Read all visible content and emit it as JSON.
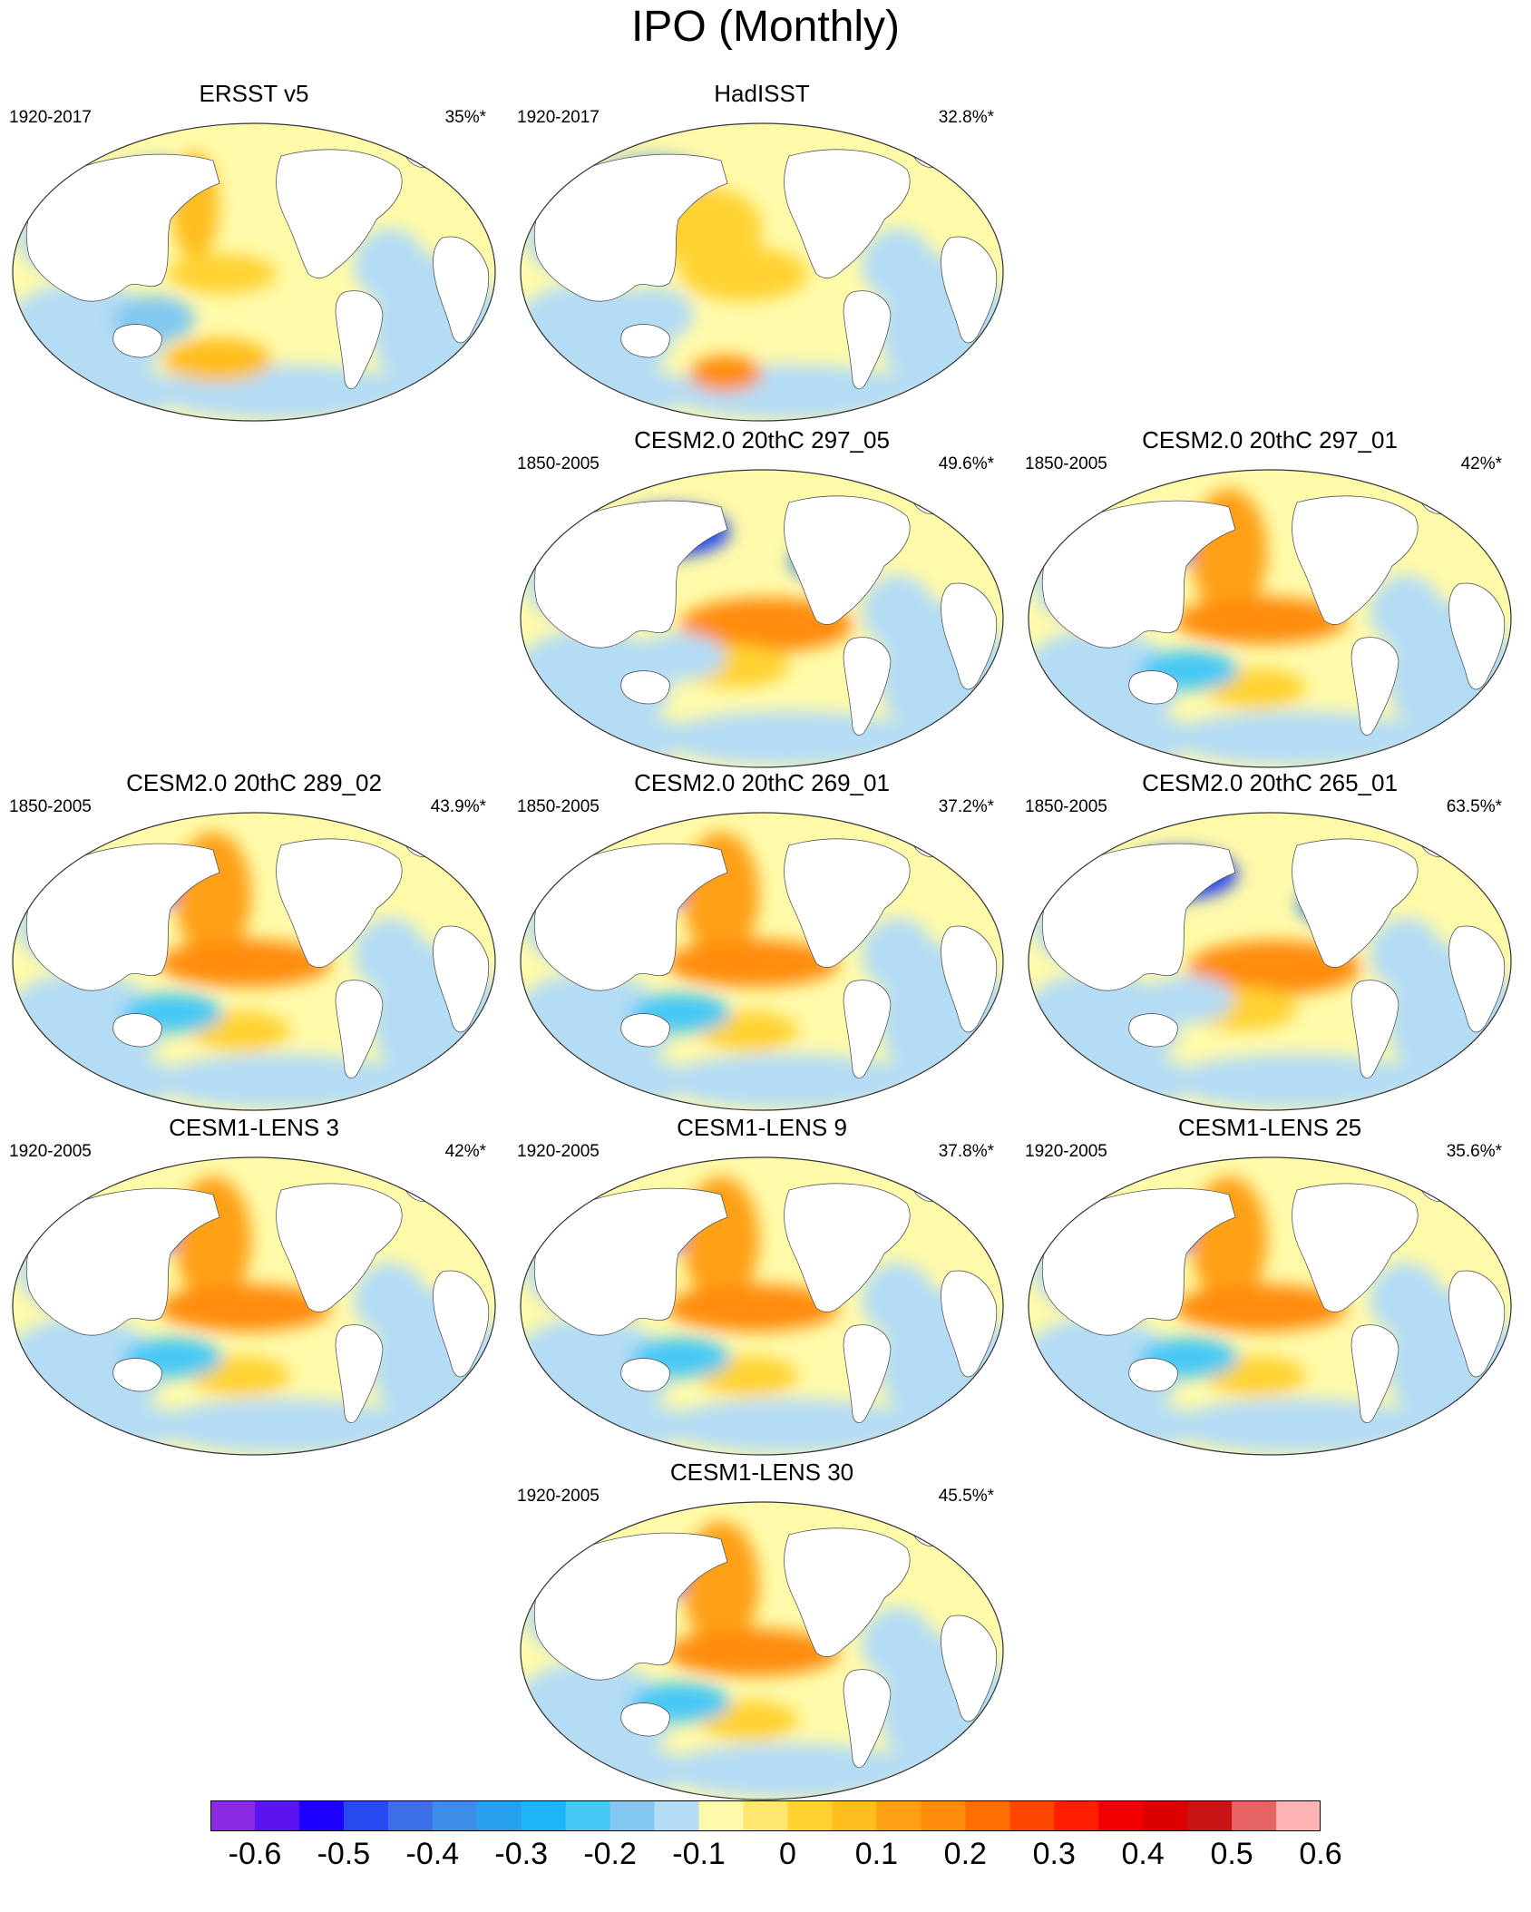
{
  "title": "IPO (Monthly)",
  "panels": [
    {
      "name": "ERSST v5",
      "period": "1920-2017",
      "pct": "35%*",
      "row": 0,
      "col": 0,
      "pattern": "obs1"
    },
    {
      "name": "HadISST",
      "period": "1920-2017",
      "pct": "32.8%*",
      "row": 0,
      "col": 1,
      "pattern": "obs2"
    },
    {
      "name": "CESM2.0 20thC 297_05",
      "period": "1850-2005",
      "pct": "49.6%*",
      "row": 1,
      "col": 1,
      "pattern": "strong"
    },
    {
      "name": "CESM2.0 20thC 297_01",
      "period": "1850-2005",
      "pct": "42%*",
      "row": 1,
      "col": 2,
      "pattern": "model"
    },
    {
      "name": "CESM2.0 20thC 289_02",
      "period": "1850-2005",
      "pct": "43.9%*",
      "row": 2,
      "col": 0,
      "pattern": "model"
    },
    {
      "name": "CESM2.0 20thC 269_01",
      "period": "1850-2005",
      "pct": "37.2%*",
      "row": 2,
      "col": 1,
      "pattern": "model"
    },
    {
      "name": "CESM2.0 20thC 265_01",
      "period": "1850-2005",
      "pct": "63.5%*",
      "row": 2,
      "col": 2,
      "pattern": "strong"
    },
    {
      "name": "CESM1-LENS 3",
      "period": "1920-2005",
      "pct": "42%*",
      "row": 3,
      "col": 0,
      "pattern": "model"
    },
    {
      "name": "CESM1-LENS 9",
      "period": "1920-2005",
      "pct": "37.8%*",
      "row": 3,
      "col": 1,
      "pattern": "model"
    },
    {
      "name": "CESM1-LENS 25",
      "period": "1920-2005",
      "pct": "35.6%*",
      "row": 3,
      "col": 2,
      "pattern": "model"
    },
    {
      "name": "CESM1-LENS 30",
      "period": "1920-2005",
      "pct": "45.5%*",
      "row": 4,
      "col": 1,
      "pattern": "model"
    }
  ],
  "colorbar": {
    "colors": [
      "#8a2be2",
      "#5a14f0",
      "#1e00ff",
      "#2848f0",
      "#3c6ee8",
      "#3c8ce8",
      "#28a0f0",
      "#1eb4fa",
      "#46c8f5",
      "#82c8f0",
      "#b4dcf5",
      "#fffaaa",
      "#ffe66e",
      "#ffd232",
      "#ffbe1e",
      "#ffa014",
      "#ff8c0a",
      "#ff6e00",
      "#ff4600",
      "#ff1e00",
      "#f00000",
      "#dc0000",
      "#c81414",
      "#e66464",
      "#ffb4b4"
    ],
    "labels": [
      "-0.6",
      "-0.5",
      "-0.4",
      "-0.3",
      "-0.2",
      "-0.1",
      "0",
      "0.1",
      "0.2",
      "0.3",
      "0.4",
      "0.5",
      "0.6"
    ]
  }
}
